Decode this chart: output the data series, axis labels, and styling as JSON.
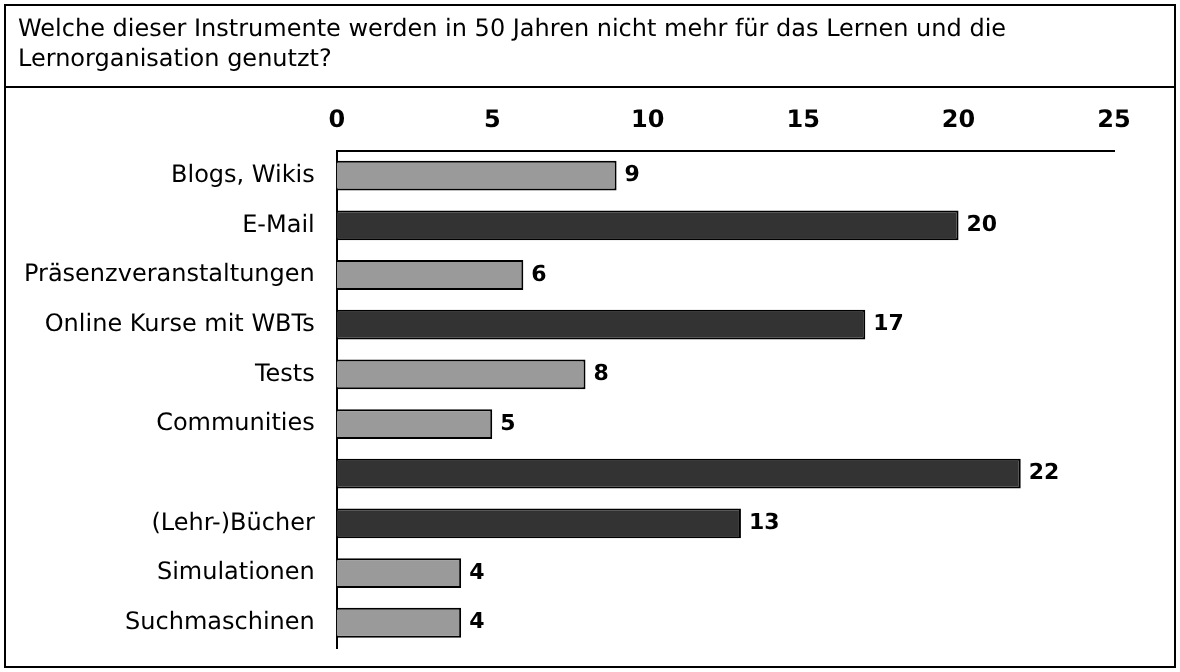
{
  "chart_data": {
    "type": "bar",
    "orientation": "horizontal",
    "title": "Welche dieser Instrumente werden in 50 Jahren nicht mehr für das Lernen und die Lernorganisation genutzt?",
    "categories": [
      "Blogs, Wikis",
      "E-Mail",
      "Präsenzveranstaltungen",
      "Online Kurse mit WBTs",
      "Tests",
      "Communities",
      null,
      "(Lehr-)Bücher",
      "Simulationen",
      "Suchmaschinen"
    ],
    "values": [
      9,
      20,
      6,
      17,
      8,
      5,
      22,
      13,
      4,
      4
    ],
    "colors": [
      "#9a9a9a",
      "#333333",
      "#9a9a9a",
      "#333333",
      "#9a9a9a",
      "#9a9a9a",
      "#333333",
      "#333333",
      "#9a9a9a",
      "#9a9a9a"
    ],
    "xlim": [
      0,
      25
    ],
    "xticks": [
      0,
      5,
      10,
      15,
      20,
      25
    ],
    "grid": false,
    "legend": false,
    "data_labels": true
  }
}
